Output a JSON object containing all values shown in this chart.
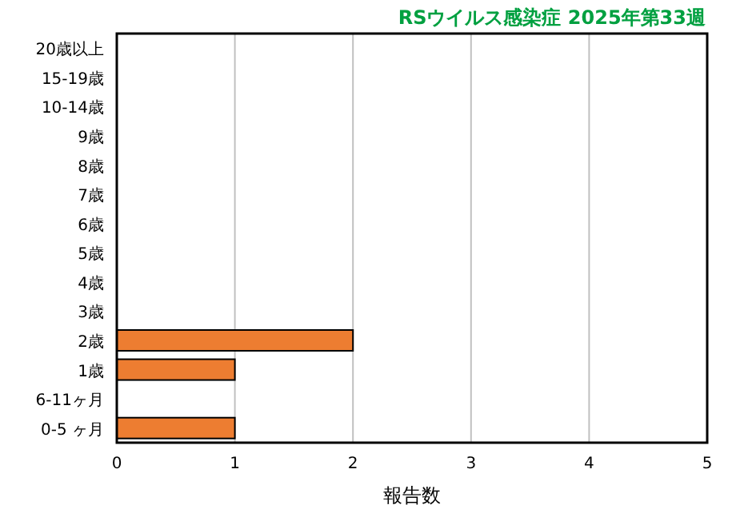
{
  "chart_data": {
    "type": "bar",
    "orientation": "horizontal",
    "title": "RSウイルス感染症 2025年第33週",
    "xlabel": "報告数",
    "categories": [
      "20歳以上",
      "15-19歳",
      "10-14歳",
      "9歳",
      "8歳",
      "7歳",
      "6歳",
      "5歳",
      "4歳",
      "3歳",
      "2歳",
      "1歳",
      "6-11ヶ月",
      "0-5 ヶ月"
    ],
    "values": [
      0,
      0,
      0,
      0,
      0,
      0,
      0,
      0,
      0,
      0,
      2,
      1,
      0,
      1
    ],
    "color": "#ed7d31",
    "xlim": [
      0,
      5
    ],
    "xticks": [
      0,
      1,
      2,
      3,
      4,
      5
    ],
    "grid": "x"
  }
}
